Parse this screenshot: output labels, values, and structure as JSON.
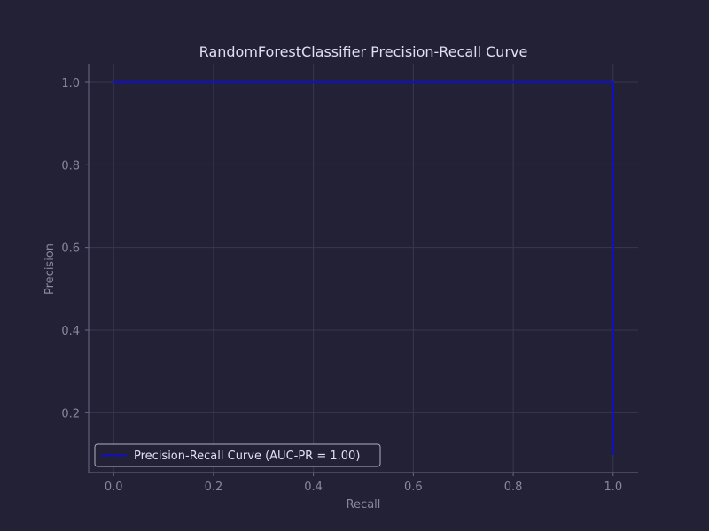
{
  "chart_data": {
    "type": "line",
    "title": "RandomForestClassifier Precision-Recall Curve",
    "xlabel": "Recall",
    "ylabel": "Precision",
    "xlim": [
      -0.05,
      1.05
    ],
    "ylim": [
      0.055,
      1.045
    ],
    "xticks": [
      0.0,
      0.2,
      0.4,
      0.6,
      0.8,
      1.0
    ],
    "xtick_labels": [
      "0.0",
      "0.2",
      "0.4",
      "0.6",
      "0.8",
      "1.0"
    ],
    "yticks": [
      0.2,
      0.4,
      0.6,
      0.8,
      1.0
    ],
    "ytick_labels": [
      "0.2",
      "0.4",
      "0.6",
      "0.8",
      "1.0"
    ],
    "grid": true,
    "legend_position": "lower-left",
    "series": [
      {
        "name": "Precision-Recall Curve (AUC-PR = 1.00)",
        "color": "#1010c8",
        "x": [
          0.0,
          0.99,
          1.0,
          1.0,
          1.0
        ],
        "y": [
          1.0,
          1.0,
          1.0,
          0.99,
          0.1
        ]
      }
    ]
  },
  "colors": {
    "background": "#232136",
    "grid": "#3a3750",
    "axis": "#6e6a86",
    "text": "#e0def4",
    "muted_text": "#8a879d",
    "legend_bg": "#232136",
    "legend_border": "#b0aec0"
  }
}
